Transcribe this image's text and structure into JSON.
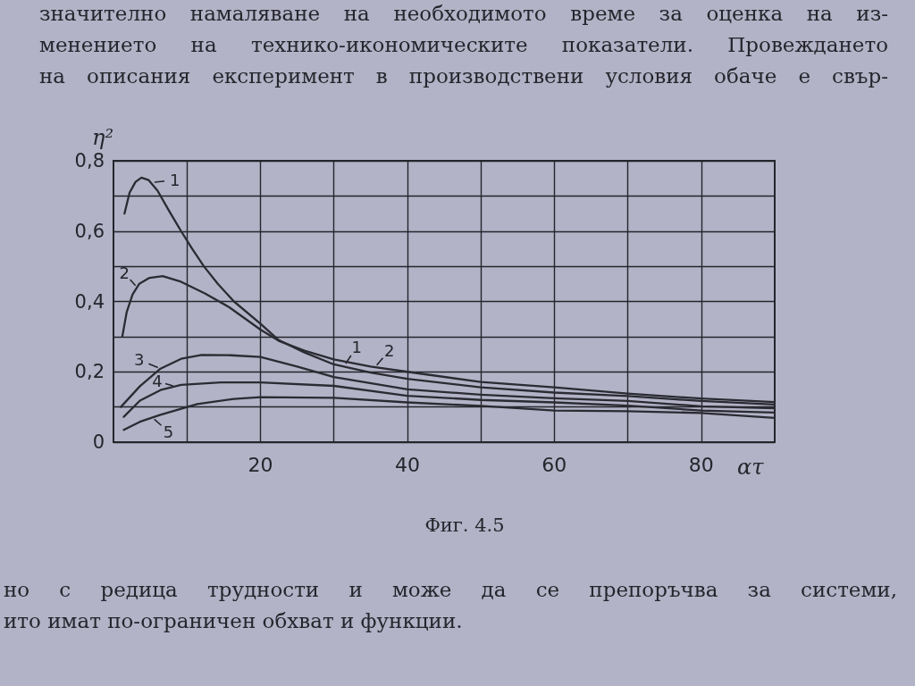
{
  "chart_data": {
    "type": "line",
    "title": "Фиг. 4.5",
    "xlabel": "ατ",
    "ylabel": "η²",
    "annotations": [
      "значително намаляване на необходимото време за оценка на из-",
      "менението на технико-икономическите показатели. Провеждането",
      "на описания експеримент в производствени условия обаче е свър-",
      "но с редица трудности и може да се препоръчва за системи,",
      "ито имат по-ограничен обхват и функции.",
      {
        "text": "1",
        "x": 5.2,
        "y": 0.738
      },
      {
        "text": "2",
        "x": 3.2,
        "y": 0.44
      },
      {
        "text": "3",
        "x": 6.4,
        "y": 0.209
      },
      {
        "text": "4",
        "x": 8.4,
        "y": 0.158
      },
      {
        "text": "5",
        "x": 5.3,
        "y": 0.07
      },
      {
        "text": "1",
        "x": 31.4,
        "y": 0.217
      },
      {
        "text": "2",
        "x": 35.6,
        "y": 0.213
      }
    ],
    "series": [
      {
        "color": "#2b2b33",
        "x": [
          1.5,
          2.2,
          3,
          3.8,
          4.8,
          6,
          7.5,
          9.2,
          10.7,
          12.3,
          14.2,
          16.4,
          20,
          22.5,
          26,
          30,
          35,
          40,
          50,
          60,
          70,
          80,
          90
        ],
        "values": [
          0.65,
          0.71,
          0.74,
          0.752,
          0.745,
          0.715,
          0.66,
          0.6,
          0.55,
          0.5,
          0.45,
          0.4,
          0.337,
          0.29,
          0.255,
          0.221,
          0.198,
          0.18,
          0.156,
          0.141,
          0.131,
          0.117,
          0.107
        ]
      },
      {
        "color": "#2b2b33",
        "x": [
          1.2,
          1.8,
          2.6,
          3.5,
          4.9,
          6.7,
          9.2,
          12.5,
          15.8,
          20,
          22.5,
          26,
          30,
          35,
          40,
          50,
          60,
          70,
          80,
          90
        ],
        "values": [
          0.3,
          0.37,
          0.42,
          0.45,
          0.467,
          0.472,
          0.456,
          0.422,
          0.383,
          0.32,
          0.288,
          0.26,
          0.235,
          0.215,
          0.2,
          0.171,
          0.156,
          0.138,
          0.124,
          0.114
        ]
      },
      {
        "color": "#2b2b33",
        "x": [
          1,
          3.6,
          6.4,
          9.2,
          12,
          16,
          20,
          25,
          30,
          40,
          50,
          60,
          70,
          80,
          90
        ],
        "values": [
          0.1,
          0.159,
          0.209,
          0.237,
          0.248,
          0.247,
          0.242,
          0.215,
          0.185,
          0.15,
          0.135,
          0.125,
          0.117,
          0.102,
          0.096
        ]
      },
      {
        "color": "#2b2b33",
        "x": [
          1.4,
          3.6,
          6.4,
          9.2,
          14.6,
          20,
          30,
          40,
          50,
          60,
          70,
          80,
          90
        ],
        "values": [
          0.072,
          0.118,
          0.148,
          0.163,
          0.17,
          0.17,
          0.16,
          0.132,
          0.12,
          0.113,
          0.104,
          0.09,
          0.084
        ]
      },
      {
        "color": "#2b2b33",
        "x": [
          1.4,
          3.6,
          6.4,
          11.4,
          16.4,
          20,
          30,
          40,
          50,
          60,
          70,
          80,
          90
        ],
        "values": [
          0.035,
          0.058,
          0.078,
          0.108,
          0.123,
          0.128,
          0.126,
          0.113,
          0.103,
          0.09,
          0.088,
          0.083,
          0.069
        ]
      }
    ],
    "xlim": [
      0,
      90
    ],
    "xticks": [
      {
        "value": 10,
        "label": null
      },
      20,
      {
        "value": 30,
        "label": null
      },
      40,
      {
        "value": 50,
        "label": null
      },
      60,
      {
        "value": 70,
        "label": null
      },
      80
    ],
    "ylim": [
      0,
      0.8
    ],
    "yticks": [
      0,
      {
        "value": 0.1,
        "label": null
      },
      {
        "value": 0.2,
        "label": "0,2"
      },
      {
        "value": 0.3,
        "label": null
      },
      {
        "value": 0.4,
        "label": "0,4"
      },
      {
        "value": 0.5,
        "label": null
      },
      {
        "value": 0.6,
        "label": "0,6"
      },
      {
        "value": 0.7,
        "label": null
      },
      {
        "value": 0.8,
        "label": "0,8"
      }
    ],
    "grid": true,
    "marker": "none",
    "line_style": "solid"
  }
}
